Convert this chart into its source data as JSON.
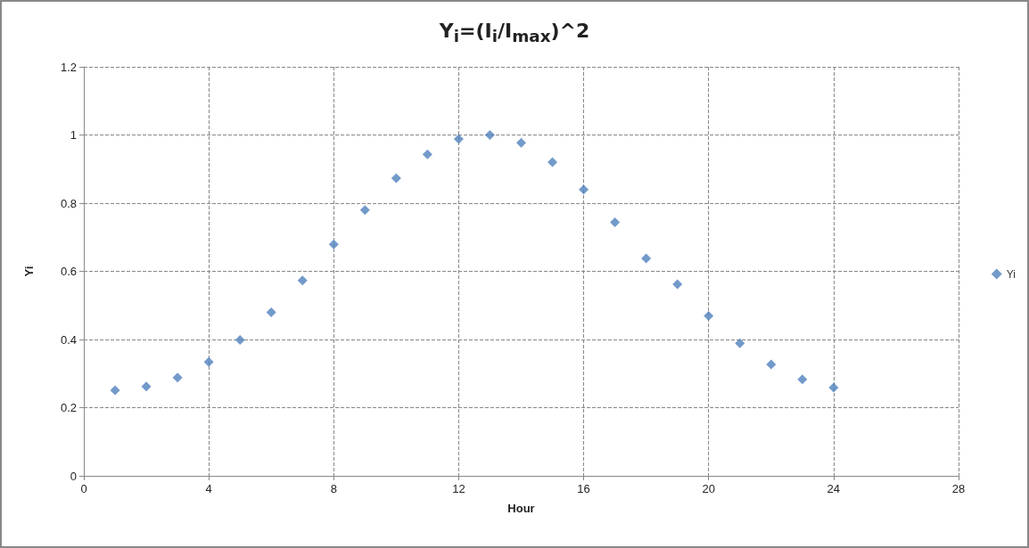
{
  "chart_data": {
    "type": "scatter",
    "title": "Y$_{i}$=(I$_{i}$/I$_{max}$)^2",
    "xlabel": "Hour",
    "ylabel": "Yi",
    "x": [
      1,
      2,
      3,
      4,
      5,
      6,
      7,
      8,
      9,
      10,
      11,
      12,
      13,
      14,
      15,
      16,
      17,
      18,
      19,
      20,
      21,
      22,
      23,
      24
    ],
    "series": [
      {
        "name": "Yi",
        "color": "#4f81bd",
        "values": [
          0.251,
          0.262,
          0.288,
          0.334,
          0.399,
          0.48,
          0.573,
          0.679,
          0.78,
          0.873,
          0.943,
          0.988,
          1.0,
          0.977,
          0.92,
          0.84,
          0.744,
          0.638,
          0.562,
          0.469,
          0.389,
          0.327,
          0.283,
          0.259
        ]
      }
    ],
    "xlim": [
      0,
      28
    ],
    "xticks": [
      0,
      4,
      8,
      12,
      16,
      20,
      24,
      28
    ],
    "ylim": [
      0,
      1.2
    ],
    "yticks": [
      0,
      0.2,
      0.4,
      0.6,
      0.8,
      1,
      1.2
    ],
    "grid": true,
    "legend": "right",
    "marker": "diamond"
  }
}
